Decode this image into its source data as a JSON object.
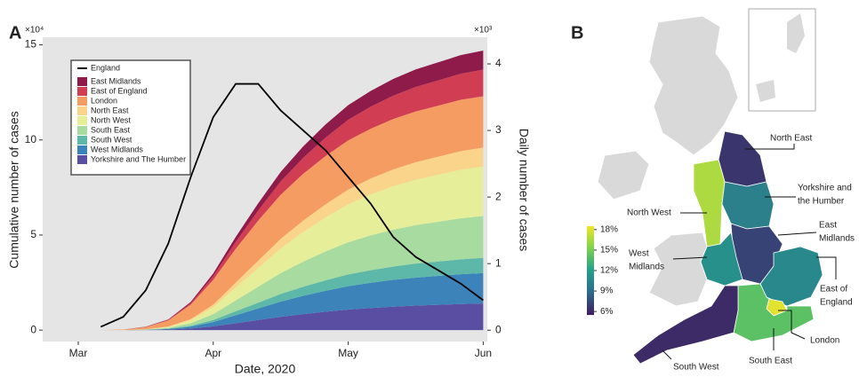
{
  "chart_data": [
    {
      "panel": "A",
      "type": "stacked-area",
      "x_label": "Date, 2020",
      "y_label": "Cumulative number of cases",
      "y2_label": "Daily number of cases",
      "y_multiplier": "×10⁴",
      "y2_multiplier": "×10³",
      "categories": [
        "Mar",
        null,
        null,
        null,
        null,
        null,
        "Apr",
        null,
        null,
        null,
        null,
        null,
        "May",
        null,
        null,
        null,
        null,
        null,
        "Jun"
      ],
      "ylim": [
        -0.6,
        15.4
      ],
      "yticks": [
        0,
        5,
        10,
        15
      ],
      "y2lim": [
        -0.17,
        4.4
      ],
      "y2ticks": [
        0,
        1,
        2,
        3,
        4
      ],
      "legend": "upper left",
      "series": [
        {
          "name": "Yorkshire and The Humber",
          "color": "#5a4ea3",
          "values": [
            0,
            0,
            0,
            0.01,
            0.03,
            0.08,
            0.2,
            0.36,
            0.53,
            0.7,
            0.84,
            0.97,
            1.08,
            1.16,
            1.23,
            1.29,
            1.33,
            1.37,
            1.4
          ]
        },
        {
          "name": "West Midlands",
          "color": "#3b83b8",
          "values": [
            0,
            0,
            0,
            0.01,
            0.03,
            0.1,
            0.22,
            0.42,
            0.61,
            0.8,
            0.96,
            1.1,
            1.23,
            1.33,
            1.41,
            1.47,
            1.52,
            1.57,
            1.6
          ]
        },
        {
          "name": "South West",
          "color": "#5db8a9",
          "values": [
            0,
            0,
            0,
            0,
            0.02,
            0.05,
            0.11,
            0.21,
            0.3,
            0.4,
            0.48,
            0.55,
            0.62,
            0.66,
            0.7,
            0.74,
            0.76,
            0.78,
            0.8
          ]
        },
        {
          "name": "South East",
          "color": "#a8dba0",
          "values": [
            0,
            0,
            0,
            0.01,
            0.04,
            0.13,
            0.31,
            0.57,
            0.84,
            1.1,
            1.32,
            1.52,
            1.69,
            1.83,
            1.94,
            2.02,
            2.09,
            2.16,
            2.2
          ]
        },
        {
          "name": "North West",
          "color": "#e7ee9a",
          "values": [
            0,
            0,
            0,
            0.01,
            0.05,
            0.16,
            0.36,
            0.68,
            0.99,
            1.3,
            1.56,
            1.79,
            2,
            2.16,
            2.29,
            2.39,
            2.47,
            2.55,
            2.6
          ]
        },
        {
          "name": "North East",
          "color": "#fbd48b",
          "values": [
            0,
            0,
            0,
            0.01,
            0.02,
            0.06,
            0.14,
            0.26,
            0.38,
            0.5,
            0.6,
            0.69,
            0.77,
            0.83,
            0.88,
            0.92,
            0.95,
            0.98,
            1
          ]
        },
        {
          "name": "London",
          "color": "#f59c63",
          "values": [
            0,
            0,
            0.03,
            0.11,
            0.32,
            0.76,
            1.3,
            1.78,
            2.11,
            2.32,
            2.46,
            2.54,
            2.59,
            2.62,
            2.65,
            2.67,
            2.68,
            2.7,
            2.7
          ]
        },
        {
          "name": "East of England",
          "color": "#d13d52",
          "values": [
            0,
            0,
            0,
            0.01,
            0.03,
            0.08,
            0.2,
            0.36,
            0.53,
            0.7,
            0.84,
            0.97,
            1.08,
            1.16,
            1.23,
            1.29,
            1.33,
            1.37,
            1.4
          ]
        },
        {
          "name": "East Midlands",
          "color": "#8e1b4a",
          "values": [
            0,
            0,
            0,
            0.01,
            0.02,
            0.06,
            0.14,
            0.26,
            0.38,
            0.5,
            0.6,
            0.69,
            0.77,
            0.83,
            0.88,
            0.92,
            0.95,
            0.98,
            1
          ]
        },
        {
          "name": "England",
          "color": "#000000",
          "axis": "y2",
          "values": [
            null,
            0.05,
            0.2,
            0.6,
            1.3,
            2.3,
            3.2,
            3.7,
            3.7,
            3.3,
            3.0,
            2.7,
            2.3,
            1.9,
            1.4,
            1.1,
            0.9,
            0.7,
            0.45
          ]
        }
      ]
    },
    {
      "panel": "B",
      "type": "choropleth",
      "colormap": [
        "#3f1f5f",
        "#2e6b8e",
        "#25a18a",
        "#7fd34e",
        "#f4e52a"
      ],
      "clim": [
        5.5,
        18.5
      ],
      "cticks": [
        {
          "value": 6,
          "label": "6%"
        },
        {
          "value": 9,
          "label": "9%"
        },
        {
          "value": 12,
          "label": "12%"
        },
        {
          "value": 15,
          "label": "15%"
        },
        {
          "value": 18,
          "label": "18%"
        }
      ],
      "regions": [
        {
          "label": [
            "North East"
          ],
          "value": 6.5
        },
        {
          "label": [
            "North West"
          ],
          "value": 16.5
        },
        {
          "label": [
            "Yorkshire and",
            "the Humber"
          ],
          "value": 10
        },
        {
          "label": [
            "East",
            "Midlands"
          ],
          "value": 7
        },
        {
          "label": [
            "West",
            "Midlands"
          ],
          "value": 11
        },
        {
          "label": [
            "East of",
            "England"
          ],
          "value": 10.5
        },
        {
          "label": [
            "London"
          ],
          "value": 18
        },
        {
          "label": [
            "South East"
          ],
          "value": 14
        },
        {
          "label": [
            "South West"
          ],
          "value": 6
        }
      ]
    }
  ]
}
